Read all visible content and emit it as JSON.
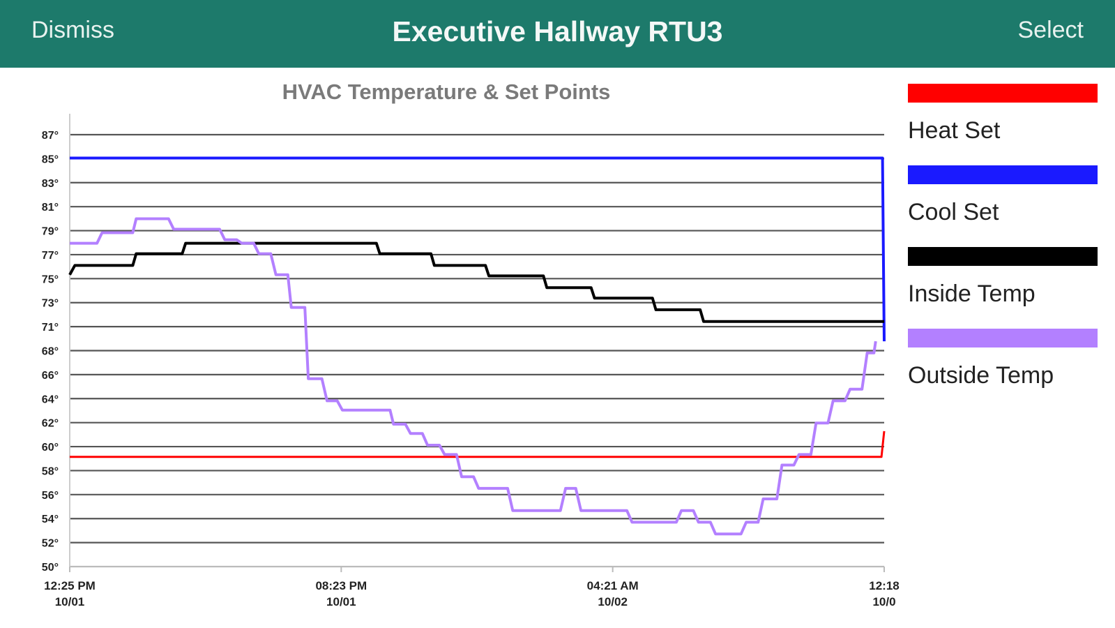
{
  "header": {
    "dismiss_label": "Dismiss",
    "title": "Executive Hallway RTU3",
    "select_label": "Select"
  },
  "colors": {
    "header_bg": "#1d7a6b",
    "heat_set": "#ff0000",
    "cool_set": "#1a1aff",
    "inside_temp": "#000000",
    "outside_temp": "#b380ff"
  },
  "chart_data": {
    "type": "line",
    "title": "HVAC Temperature & Set Points",
    "ylim": [
      50,
      87
    ],
    "y_ticks": [
      "87°",
      "85°",
      "83°",
      "81°",
      "79°",
      "77°",
      "75°",
      "73°",
      "71°",
      "68°",
      "66°",
      "64°",
      "62°",
      "60°",
      "58°",
      "56°",
      "54°",
      "52°",
      "50°"
    ],
    "x_ticks": [
      {
        "time": "12:25 PM",
        "date": "10/01"
      },
      {
        "time": "08:23 PM",
        "date": "10/01"
      },
      {
        "time": "04:21 AM",
        "date": "10/02"
      },
      {
        "time": "12:18",
        "date": "10/0"
      }
    ],
    "x_hours_range": [
      0,
      23.9
    ],
    "grid": true,
    "legend_position": "right",
    "series": [
      {
        "name": "Heat Set",
        "color": "#ff0000",
        "width": 3,
        "points": [
          [
            0,
            59.4
          ],
          [
            23.82,
            59.4
          ],
          [
            23.9,
            61.6
          ]
        ]
      },
      {
        "name": "Cool Set",
        "color": "#1a1aff",
        "width": 4,
        "points": [
          [
            0,
            85
          ],
          [
            23.85,
            85
          ],
          [
            23.9,
            69.3
          ]
        ]
      },
      {
        "name": "Inside Temp",
        "color": "#000000",
        "width": 4,
        "points": [
          [
            0,
            75
          ],
          [
            0.15,
            75.8
          ],
          [
            1.85,
            75.8
          ],
          [
            1.95,
            76.8
          ],
          [
            3.3,
            76.8
          ],
          [
            3.4,
            77.7
          ],
          [
            9,
            77.7
          ],
          [
            9.1,
            76.8
          ],
          [
            10.6,
            76.8
          ],
          [
            10.7,
            75.8
          ],
          [
            12.2,
            75.8
          ],
          [
            12.3,
            74.9
          ],
          [
            13.9,
            74.9
          ],
          [
            14,
            73.9
          ],
          [
            15.3,
            73.9
          ],
          [
            15.4,
            73
          ],
          [
            17.1,
            73
          ],
          [
            17.2,
            72
          ],
          [
            18.5,
            72
          ],
          [
            18.6,
            71
          ],
          [
            23.9,
            71
          ]
        ]
      },
      {
        "name": "Outside Temp",
        "color": "#b380ff",
        "width": 4,
        "points": [
          [
            0,
            77.7
          ],
          [
            0.8,
            77.7
          ],
          [
            0.95,
            78.6
          ],
          [
            1.85,
            78.6
          ],
          [
            1.95,
            79.8
          ],
          [
            2.9,
            79.8
          ],
          [
            3.05,
            78.9
          ],
          [
            4.4,
            78.9
          ],
          [
            4.55,
            78
          ],
          [
            4.9,
            78
          ],
          [
            5.05,
            77.7
          ],
          [
            5.4,
            77.7
          ],
          [
            5.55,
            76.8
          ],
          [
            5.9,
            76.8
          ],
          [
            6.05,
            75
          ],
          [
            6.4,
            75
          ],
          [
            6.5,
            72.2
          ],
          [
            6.9,
            72.2
          ],
          [
            7,
            66.1
          ],
          [
            7.4,
            66.1
          ],
          [
            7.55,
            64.2
          ],
          [
            7.85,
            64.2
          ],
          [
            8,
            63.4
          ],
          [
            9.4,
            63.4
          ],
          [
            9.5,
            62.2
          ],
          [
            9.85,
            62.2
          ],
          [
            10,
            61.4
          ],
          [
            10.35,
            61.4
          ],
          [
            10.5,
            60.4
          ],
          [
            10.85,
            60.4
          ],
          [
            11,
            59.6
          ],
          [
            11.35,
            59.6
          ],
          [
            11.5,
            57.7
          ],
          [
            11.85,
            57.7
          ],
          [
            12,
            56.7
          ],
          [
            12.85,
            56.7
          ],
          [
            13,
            54.8
          ],
          [
            14.4,
            54.8
          ],
          [
            14.55,
            56.7
          ],
          [
            14.85,
            56.7
          ],
          [
            15,
            54.8
          ],
          [
            16.35,
            54.8
          ],
          [
            16.5,
            53.8
          ],
          [
            17.8,
            53.8
          ],
          [
            17.95,
            54.8
          ],
          [
            18.3,
            54.8
          ],
          [
            18.45,
            53.8
          ],
          [
            18.8,
            53.8
          ],
          [
            18.95,
            52.8
          ],
          [
            19.7,
            52.8
          ],
          [
            19.85,
            53.8
          ],
          [
            20.2,
            53.8
          ],
          [
            20.35,
            55.8
          ],
          [
            20.75,
            55.8
          ],
          [
            20.9,
            58.7
          ],
          [
            21.25,
            58.7
          ],
          [
            21.4,
            59.6
          ],
          [
            21.75,
            59.6
          ],
          [
            21.9,
            62.3
          ],
          [
            22.25,
            62.3
          ],
          [
            22.4,
            64.2
          ],
          [
            22.75,
            64.2
          ],
          [
            22.9,
            65.2
          ],
          [
            23.25,
            65.2
          ],
          [
            23.4,
            68.3
          ],
          [
            23.6,
            68.3
          ],
          [
            23.65,
            69.3
          ]
        ]
      }
    ]
  }
}
